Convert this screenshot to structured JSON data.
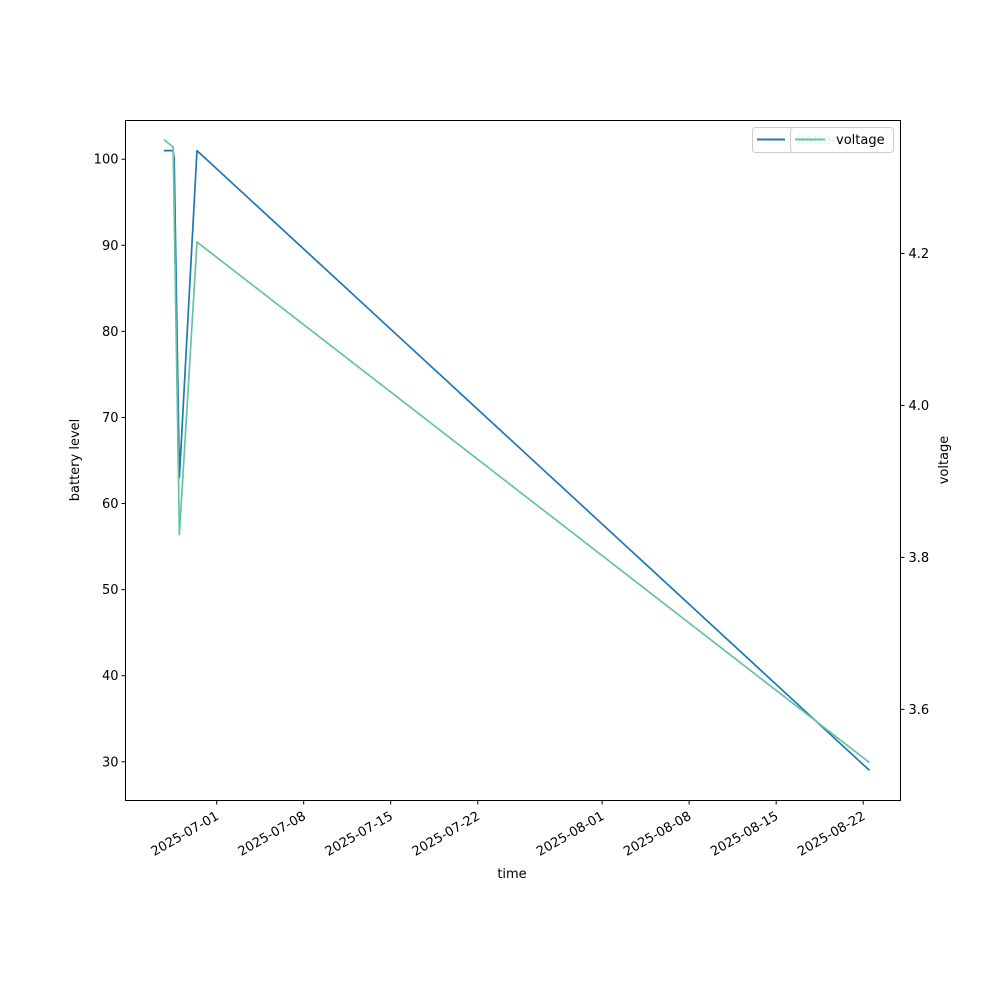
{
  "chart_data": {
    "type": "line",
    "xlabel": "time",
    "x_tick_labels": [
      "2025-07-01",
      "2025-07-08",
      "2025-07-15",
      "2025-07-22",
      "2025-08-01",
      "2025-08-08",
      "2025-08-15",
      "2025-08-22"
    ],
    "x_tick_dates": [
      "2025-07-01",
      "2025-07-08",
      "2025-07-15",
      "2025-07-22",
      "2025-08-01",
      "2025-08-08",
      "2025-08-15",
      "2025-08-22"
    ],
    "xlim": [
      "2025-06-23T16:00",
      "2025-08-25T00:00"
    ],
    "left_axis": {
      "label": "battery level",
      "ylim": [
        25.5,
        104.5
      ],
      "ticks": [
        30,
        40,
        50,
        60,
        70,
        80,
        90,
        100
      ]
    },
    "right_axis": {
      "label": "voltage",
      "ylim": [
        3.48,
        4.375
      ],
      "ticks": [
        3.6,
        3.8,
        4.0,
        4.2
      ],
      "tick_labels": [
        "3.6",
        "3.8",
        "4.0",
        "4.2"
      ]
    },
    "series": [
      {
        "name": "battery",
        "axis": "left",
        "color": "#1f77b4",
        "points": [
          {
            "x": "2025-06-26T18:00",
            "y": 101
          },
          {
            "x": "2025-06-27T12:00",
            "y": 101
          },
          {
            "x": "2025-06-27T14:00",
            "y": 100
          },
          {
            "x": "2025-06-28T00:00",
            "y": 63
          },
          {
            "x": "2025-06-29T10:00",
            "y": 101
          },
          {
            "x": "2025-08-22T12:00",
            "y": 29
          }
        ]
      },
      {
        "name": "voltage",
        "axis": "right",
        "color": "#66c2a5",
        "points": [
          {
            "x": "2025-06-26T18:00",
            "y": 4.35
          },
          {
            "x": "2025-06-27T12:00",
            "y": 4.34
          },
          {
            "x": "2025-06-28T00:00",
            "y": 3.83
          },
          {
            "x": "2025-06-29T10:00",
            "y": 4.215
          },
          {
            "x": "2025-08-22T12:00",
            "y": 3.53
          }
        ]
      }
    ],
    "legends": [
      {
        "placement": "upper right",
        "entries": [
          {
            "label": "battery",
            "color": "#1f77b4"
          }
        ]
      },
      {
        "placement": "upper right",
        "entries": [
          {
            "label": "voltage",
            "color": "#66c2a5"
          }
        ]
      }
    ],
    "grid": false
  }
}
